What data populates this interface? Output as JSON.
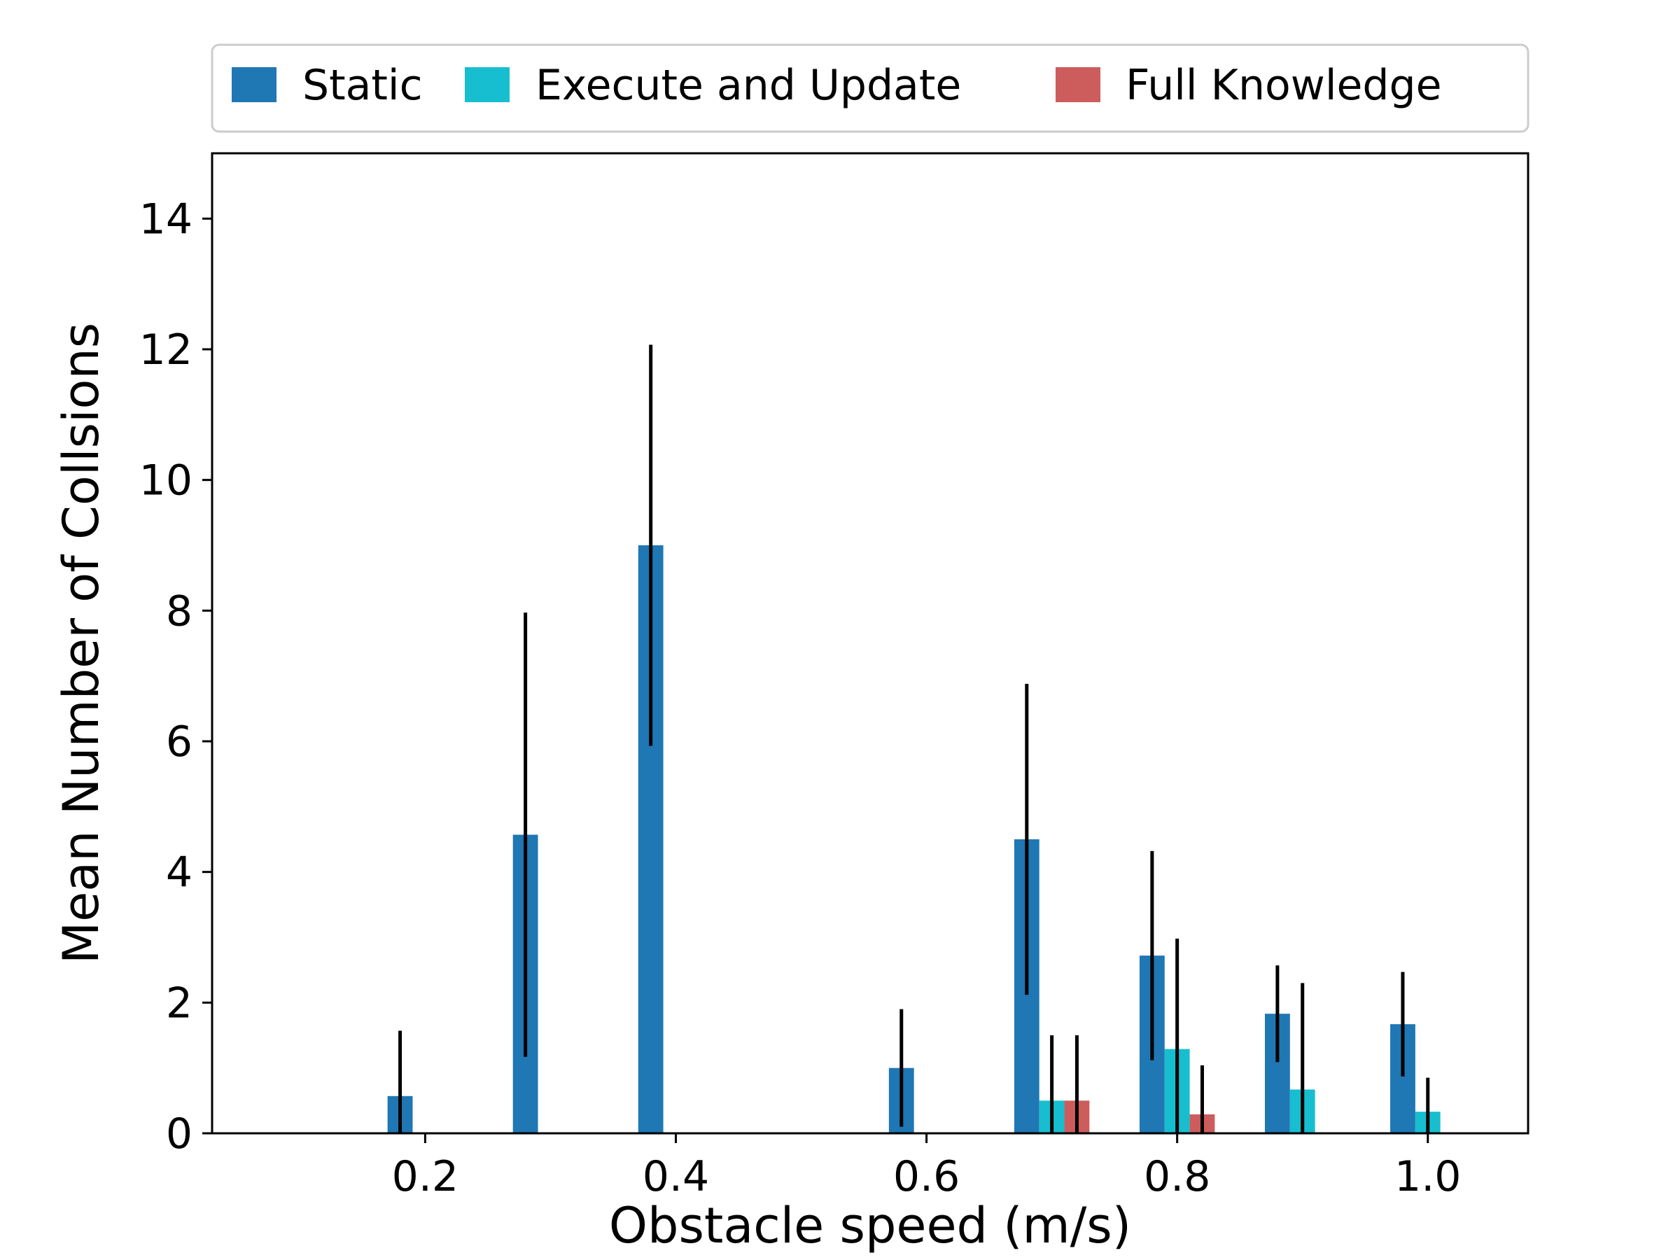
{
  "chart_data": {
    "type": "bar",
    "xlabel": "Obstacle speed (m/s)",
    "ylabel": "Mean Number of Collsions",
    "xlim": [
      0.03,
      1.08
    ],
    "ylim": [
      0,
      15
    ],
    "xticks": [
      0.2,
      0.4,
      0.6,
      0.8,
      1.0
    ],
    "xtick_labels": [
      "0.2",
      "0.4",
      "0.6",
      "0.8",
      "1.0"
    ],
    "yticks": [
      0,
      2,
      4,
      6,
      8,
      10,
      12,
      14
    ],
    "ytick_labels": [
      "0",
      "2",
      "4",
      "6",
      "8",
      "10",
      "12",
      "14"
    ],
    "bar_width": 0.02,
    "grid": false,
    "legend_position": "top-center, above plot",
    "series": [
      {
        "name": "Static",
        "color": "#1f77b4",
        "x": [
          0.18,
          0.28,
          0.38,
          0.58,
          0.68,
          0.78,
          0.88,
          0.98
        ],
        "values": [
          0.57,
          4.57,
          9.0,
          1.0,
          4.5,
          2.72,
          1.83,
          1.67
        ],
        "errors": [
          1.0,
          3.4,
          3.07,
          0.9,
          2.38,
          1.6,
          0.74,
          0.8
        ]
      },
      {
        "name": "Execute and Update",
        "color": "#17becf",
        "x": [
          0.7,
          0.8,
          0.9,
          1.0
        ],
        "values": [
          0.5,
          1.29,
          0.67,
          0.33
        ],
        "errors": [
          1.0,
          1.69,
          1.63,
          0.52
        ]
      },
      {
        "name": "Full Knowledge",
        "color": "#cd5c5c",
        "x": [
          0.72,
          0.82
        ],
        "values": [
          0.5,
          0.29
        ],
        "errors": [
          1.0,
          0.75
        ]
      }
    ]
  }
}
